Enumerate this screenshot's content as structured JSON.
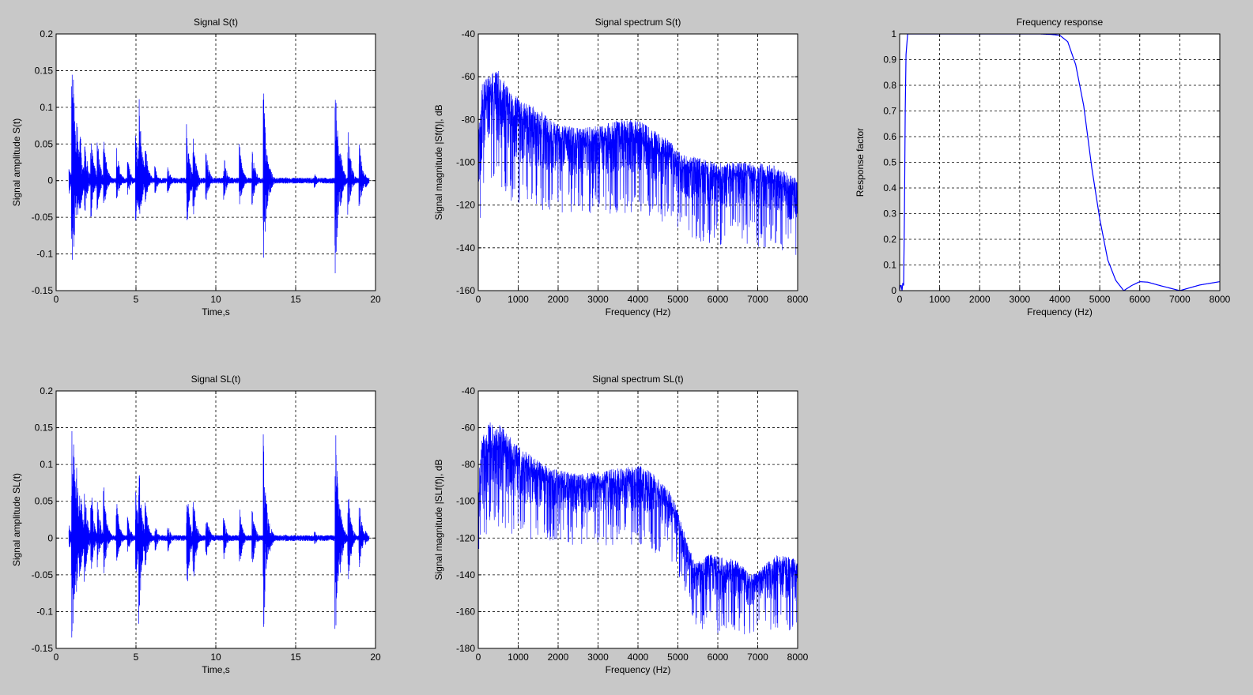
{
  "colors": {
    "background": "#c8c8c8",
    "axes_bg": "#ffffff",
    "line": "#0000ff",
    "grid": "#000000"
  },
  "chart_data": [
    {
      "id": "signal-s",
      "type": "line",
      "title": "Signal S(t)",
      "xlabel": "Time,s",
      "ylabel": "Signal amplitude S(t)",
      "xlim": [
        0,
        20
      ],
      "ylim": [
        -0.15,
        0.2
      ],
      "xticks": [
        0,
        5,
        10,
        15,
        20
      ],
      "yticks": [
        -0.15,
        -0.1,
        -0.05,
        0,
        0.05,
        0.1,
        0.15,
        0.2
      ],
      "xtick_labels": [
        "0",
        "5",
        "10",
        "15",
        "20"
      ],
      "ytick_labels": [
        "-0.15",
        "-0.1",
        "-0.05",
        "0",
        "0.05",
        "0.1",
        "0.15",
        "0.2"
      ],
      "grid": true,
      "line_color": "#0000ff",
      "series": [
        {
          "signal_span": [
            0.8,
            19.6
          ],
          "x": [
            0.8,
            1.0,
            1.1,
            1.3,
            1.5,
            1.8,
            2.2,
            2.6,
            3.0,
            3.8,
            4.5,
            5.0,
            5.2,
            5.6,
            6.2,
            7.0,
            8.2,
            8.6,
            9.4,
            10.5,
            11.5,
            12.3,
            13.0,
            13.4,
            14.4,
            15.2,
            16.2,
            17.5,
            17.8,
            18.3,
            19.0,
            19.4
          ],
          "peaks": [
            0.02,
            0.155,
            0.14,
            0.1,
            0.07,
            0.06,
            0.07,
            0.06,
            0.06,
            0.05,
            0.03,
            0.07,
            0.12,
            0.05,
            0.02,
            0.02,
            0.08,
            0.06,
            0.04,
            0.04,
            0.05,
            0.045,
            0.13,
            0.02,
            0.005,
            0.002,
            0.01,
            0.15,
            0.05,
            0.07,
            0.05,
            0.01
          ],
          "troughs": [
            -0.02,
            -0.125,
            -0.11,
            -0.07,
            -0.05,
            -0.05,
            -0.05,
            -0.04,
            -0.04,
            -0.03,
            -0.02,
            -0.06,
            -0.075,
            -0.03,
            -0.02,
            -0.02,
            -0.07,
            -0.05,
            -0.03,
            -0.03,
            -0.04,
            -0.035,
            -0.125,
            -0.02,
            -0.005,
            -0.002,
            -0.01,
            -0.128,
            -0.04,
            -0.05,
            -0.04,
            -0.01
          ]
        }
      ]
    },
    {
      "id": "spectrum-s",
      "type": "line",
      "title": "Signal spectrum S(t)",
      "xlabel": "Frequency (Hz)",
      "ylabel": "Signal magnitude |Sf(f)|, dB",
      "xlim": [
        0,
        8000
      ],
      "ylim": [
        -160,
        -40
      ],
      "xticks": [
        0,
        1000,
        2000,
        3000,
        4000,
        5000,
        6000,
        7000,
        8000
      ],
      "yticks": [
        -160,
        -140,
        -120,
        -100,
        -80,
        -60,
        -40
      ],
      "xtick_labels": [
        "0",
        "1000",
        "2000",
        "3000",
        "4000",
        "5000",
        "6000",
        "7000",
        "8000"
      ],
      "ytick_labels": [
        "-160",
        "-140",
        "-120",
        "-100",
        "-80",
        "-60",
        "-40"
      ],
      "grid": true,
      "line_color": "#0000ff",
      "series": [
        {
          "x": [
            0,
            100,
            200,
            300,
            500,
            700,
            1000,
            1500,
            2000,
            2500,
            3000,
            3500,
            4000,
            4400,
            4800,
            5000,
            5500,
            6000,
            6500,
            7000,
            7500,
            8000
          ],
          "upper": [
            -85,
            -62,
            -60,
            -58,
            -57,
            -63,
            -70,
            -75,
            -82,
            -84,
            -83,
            -80,
            -80,
            -85,
            -90,
            -95,
            -98,
            -100,
            -100,
            -100,
            -102,
            -108
          ],
          "lower": [
            -120,
            -110,
            -98,
            -95,
            -100,
            -105,
            -108,
            -110,
            -112,
            -112,
            -112,
            -112,
            -112,
            -115,
            -118,
            -120,
            -125,
            -128,
            -125,
            -128,
            -128,
            -135
          ]
        }
      ]
    },
    {
      "id": "frequency-response",
      "type": "line",
      "title": "Frequency response",
      "xlabel": "Frequency (Hz)",
      "ylabel": "Response factor",
      "xlim": [
        0,
        8000
      ],
      "ylim": [
        0,
        1
      ],
      "xticks": [
        0,
        1000,
        2000,
        3000,
        4000,
        5000,
        6000,
        7000,
        8000
      ],
      "yticks": [
        0,
        0.1,
        0.2,
        0.3,
        0.4,
        0.5,
        0.6,
        0.7,
        0.8,
        0.9,
        1
      ],
      "xtick_labels": [
        "0",
        "1000",
        "2000",
        "3000",
        "4000",
        "5000",
        "6000",
        "7000",
        "8000"
      ],
      "ytick_labels": [
        "0",
        "0.1",
        "0.2",
        "0.3",
        "0.4",
        "0.5",
        "0.6",
        "0.7",
        "0.8",
        "0.9",
        "1"
      ],
      "grid": true,
      "line_color": "#0000ff",
      "series": [
        {
          "x": [
            0,
            30,
            60,
            80,
            100,
            120,
            150,
            200,
            250,
            3500,
            3800,
            4000,
            4200,
            4400,
            4600,
            4800,
            5000,
            5200,
            5400,
            5600,
            5800,
            6000,
            6200,
            6500,
            7000,
            7500,
            8000
          ],
          "y": [
            0,
            0.03,
            0.0,
            0.03,
            0.02,
            0.3,
            0.9,
            1.0,
            1.0,
            1.0,
            0.998,
            0.995,
            0.97,
            0.88,
            0.72,
            0.48,
            0.28,
            0.12,
            0.04,
            0.0,
            0.02,
            0.035,
            0.033,
            0.02,
            0.0,
            0.022,
            0.035
          ]
        }
      ]
    },
    {
      "id": "signal-sl",
      "type": "line",
      "title": "Signal SL(t)",
      "xlabel": "Time,s",
      "ylabel": "Signal amplitude SL(t)",
      "xlim": [
        0,
        20
      ],
      "ylim": [
        -0.15,
        0.2
      ],
      "xticks": [
        0,
        5,
        10,
        15,
        20
      ],
      "yticks": [
        -0.15,
        -0.1,
        -0.05,
        0,
        0.05,
        0.1,
        0.15,
        0.2
      ],
      "xtick_labels": [
        "0",
        "5",
        "10",
        "15",
        "20"
      ],
      "ytick_labels": [
        "-0.15",
        "-0.1",
        "-0.05",
        "0",
        "0.05",
        "0.1",
        "0.15",
        "0.2"
      ],
      "grid": true,
      "line_color": "#0000ff",
      "series": [
        {
          "signal_span": [
            0.8,
            19.6
          ],
          "x": [
            0.8,
            1.0,
            1.1,
            1.3,
            1.5,
            1.8,
            2.2,
            2.6,
            3.0,
            3.8,
            4.5,
            5.0,
            5.2,
            5.6,
            6.2,
            7.0,
            8.2,
            8.6,
            9.4,
            10.5,
            11.5,
            12.3,
            13.0,
            13.4,
            14.4,
            15.2,
            16.2,
            17.5,
            17.8,
            18.3,
            19.0,
            19.4
          ],
          "peaks": [
            0.02,
            0.165,
            0.13,
            0.1,
            0.08,
            0.07,
            0.07,
            0.06,
            0.07,
            0.05,
            0.03,
            0.07,
            0.1,
            0.05,
            0.02,
            0.02,
            0.07,
            0.06,
            0.04,
            0.03,
            0.04,
            0.04,
            0.145,
            0.02,
            0.005,
            0.002,
            0.01,
            0.17,
            0.05,
            0.065,
            0.05,
            0.01
          ],
          "troughs": [
            -0.02,
            -0.145,
            -0.12,
            -0.08,
            -0.06,
            -0.06,
            -0.05,
            -0.04,
            -0.05,
            -0.04,
            -0.02,
            -0.06,
            -0.117,
            -0.04,
            -0.02,
            -0.02,
            -0.08,
            -0.06,
            -0.03,
            -0.03,
            -0.04,
            -0.04,
            -0.135,
            -0.02,
            -0.005,
            -0.002,
            -0.01,
            -0.14,
            -0.05,
            -0.065,
            -0.04,
            -0.01
          ]
        }
      ]
    },
    {
      "id": "spectrum-sl",
      "type": "line",
      "title": "Signal spectrum SL(t)",
      "xlabel": "Frequency (Hz)",
      "ylabel": "Signal magnitude |SLf(f)|, dB",
      "xlim": [
        0,
        8000
      ],
      "ylim": [
        -180,
        -40
      ],
      "xticks": [
        0,
        1000,
        2000,
        3000,
        4000,
        5000,
        6000,
        7000,
        8000
      ],
      "yticks": [
        -180,
        -160,
        -140,
        -120,
        -100,
        -80,
        -60,
        -40
      ],
      "xtick_labels": [
        "0",
        "1000",
        "2000",
        "3000",
        "4000",
        "5000",
        "6000",
        "7000",
        "8000"
      ],
      "ytick_labels": [
        "-180",
        "-160",
        "-140",
        "-120",
        "-100",
        "-80",
        "-60",
        "-40"
      ],
      "grid": true,
      "line_color": "#0000ff",
      "series": [
        {
          "x": [
            0,
            100,
            200,
            300,
            500,
            700,
            1000,
            1500,
            2000,
            2500,
            3000,
            3500,
            4000,
            4400,
            4800,
            5000,
            5200,
            5400,
            5600,
            5800,
            6000,
            6500,
            6800,
            7000,
            7500,
            8000
          ],
          "upper": [
            -90,
            -65,
            -60,
            -57,
            -58,
            -62,
            -70,
            -78,
            -83,
            -85,
            -84,
            -82,
            -80,
            -85,
            -95,
            -105,
            -120,
            -132,
            -132,
            -128,
            -130,
            -132,
            -140,
            -138,
            -128,
            -132
          ],
          "lower": [
            -155,
            -120,
            -110,
            -100,
            -102,
            -105,
            -108,
            -110,
            -112,
            -112,
            -112,
            -112,
            -112,
            -116,
            -120,
            -128,
            -140,
            -155,
            -158,
            -155,
            -160,
            -158,
            -163,
            -158,
            -160,
            -160
          ]
        }
      ]
    }
  ]
}
